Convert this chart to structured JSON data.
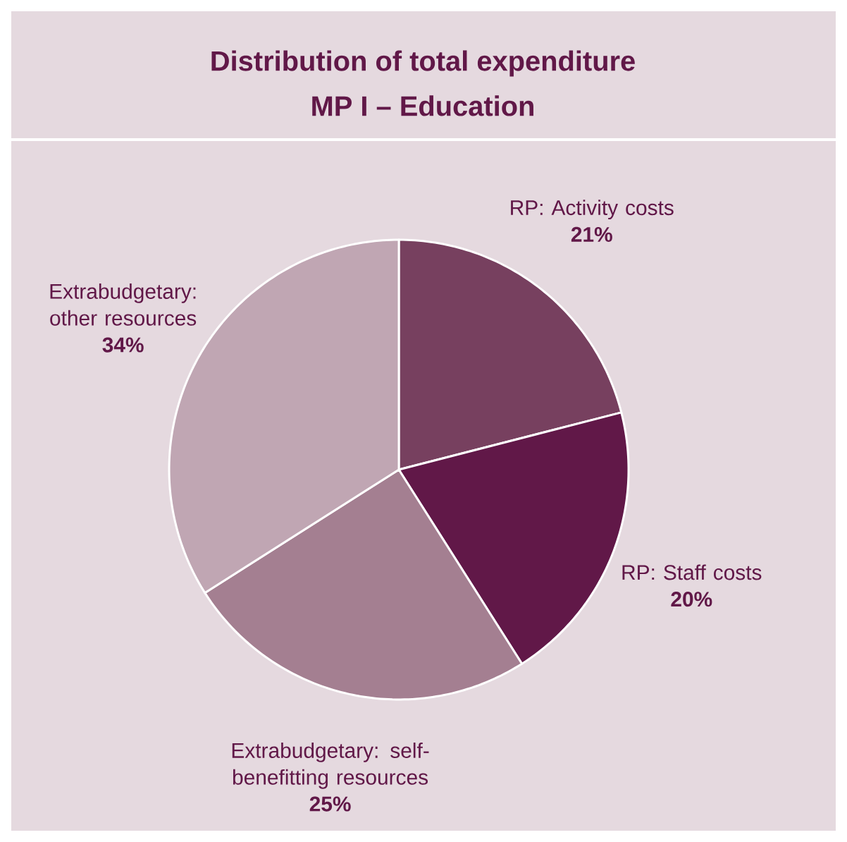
{
  "chart_data": {
    "type": "pie",
    "title": "Distribution of total expenditure",
    "subtitle": "MP I – Education",
    "categories": [
      "RP: Activity costs",
      "RP: Staff costs",
      "Extrabudgetary: self-benefitting resources",
      "Extrabudgetary: other resources"
    ],
    "values": [
      21,
      20,
      25,
      34
    ],
    "colors": [
      "#77405f",
      "#611848",
      "#a47f91",
      "#c0a6b3"
    ],
    "value_labels": [
      "21%",
      "20%",
      "25%",
      "34%"
    ]
  }
}
